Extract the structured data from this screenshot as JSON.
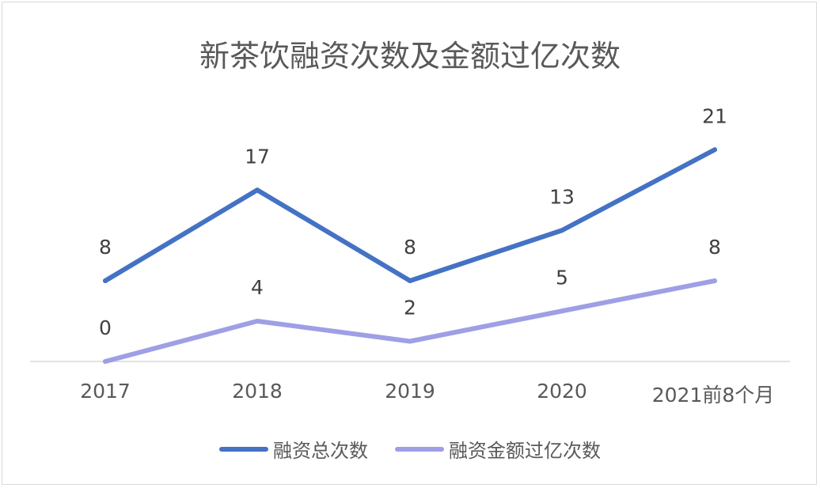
{
  "chart_data": {
    "type": "line",
    "title": "新茶饮融资次数及金额过亿次数",
    "xlabel": "",
    "ylabel": "",
    "categories": [
      "2017",
      "2018",
      "2019",
      "2020",
      "2021前8个月"
    ],
    "ylim": [
      0,
      24
    ],
    "grid": false,
    "legend_position": "bottom",
    "series": [
      {
        "name": "融资总次数",
        "values": [
          8,
          17,
          8,
          13,
          21
        ],
        "color": "#4472c4"
      },
      {
        "name": "融资金额过亿次数",
        "values": [
          0,
          4,
          2,
          5,
          8
        ],
        "color": "#9f9fe6"
      }
    ],
    "data_labels": true
  }
}
